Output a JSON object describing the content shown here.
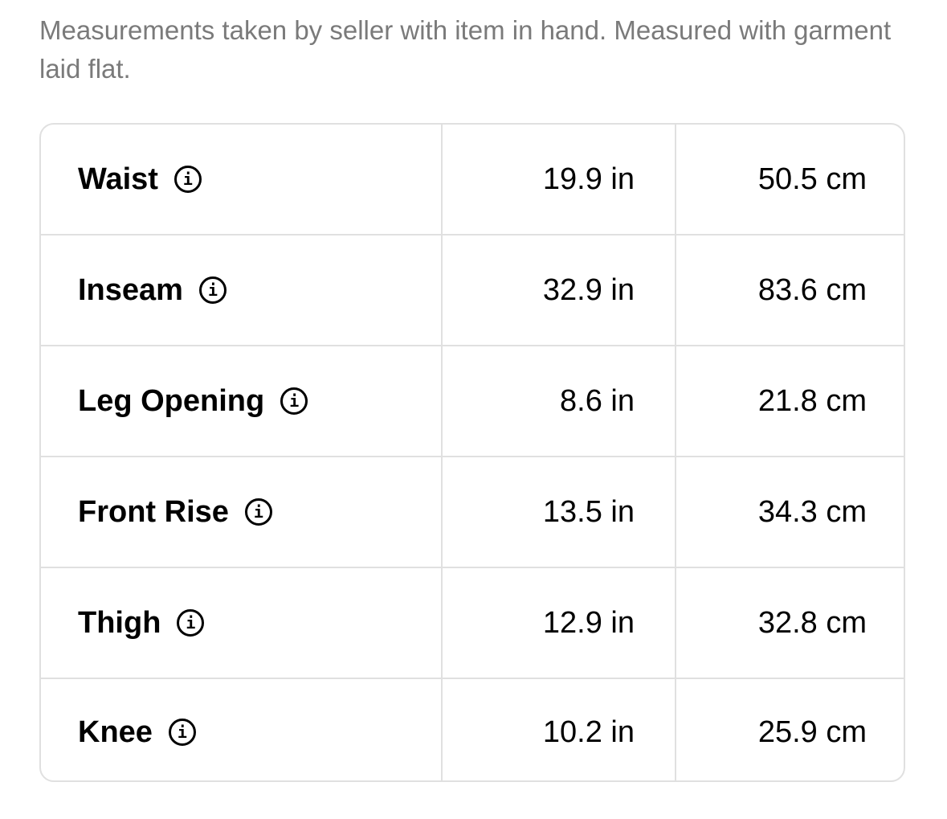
{
  "note": "Measurements taken by seller with item in hand. Measured with garment laid flat.",
  "info_icon": "i",
  "rows": [
    {
      "label": "Waist",
      "in": "19.9 in",
      "cm": "50.5 cm"
    },
    {
      "label": "Inseam",
      "in": "32.9 in",
      "cm": "83.6 cm"
    },
    {
      "label": "Leg Opening",
      "in": "8.6 in",
      "cm": "21.8 cm"
    },
    {
      "label": "Front Rise",
      "in": "13.5 in",
      "cm": "34.3 cm"
    },
    {
      "label": "Thigh",
      "in": "12.9 in",
      "cm": "32.8 cm"
    },
    {
      "label": "Knee",
      "in": "10.2 in",
      "cm": "25.9 cm"
    }
  ]
}
